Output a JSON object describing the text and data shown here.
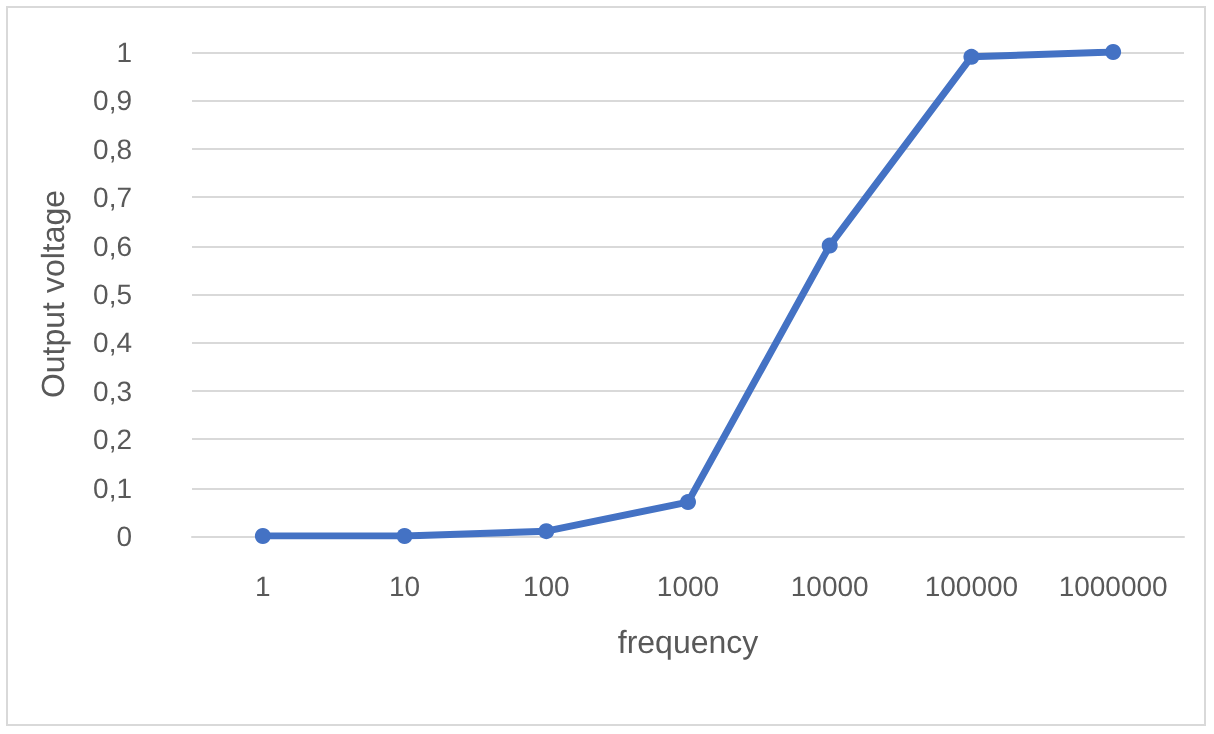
{
  "chart_data": {
    "type": "line",
    "xlabel": "frequency",
    "ylabel": "Output voltage",
    "categories": [
      "1",
      "10",
      "100",
      "1000",
      "10000",
      "100000",
      "1000000"
    ],
    "series": [
      {
        "color": "#4472c4",
        "values": [
          0,
          0,
          0.01,
          0.07,
          0.6,
          0.99,
          1
        ]
      }
    ],
    "ylim": [
      0,
      1
    ],
    "yticks": [
      0,
      {
        "value": 0.1,
        "label": "0,1"
      },
      {
        "value": 0.2,
        "label": "0,2"
      },
      {
        "value": 0.3,
        "label": "0,3"
      },
      {
        "value": 0.4,
        "label": "0,4"
      },
      {
        "value": 0.5,
        "label": "0,5"
      },
      {
        "value": 0.6,
        "label": "0,6"
      },
      {
        "value": 0.7,
        "label": "0,7"
      },
      {
        "value": 0.8,
        "label": "0,8"
      },
      {
        "value": 0.9,
        "label": "0,9"
      },
      1
    ],
    "grid": "y",
    "marker": "circle",
    "line_style": "solid"
  }
}
